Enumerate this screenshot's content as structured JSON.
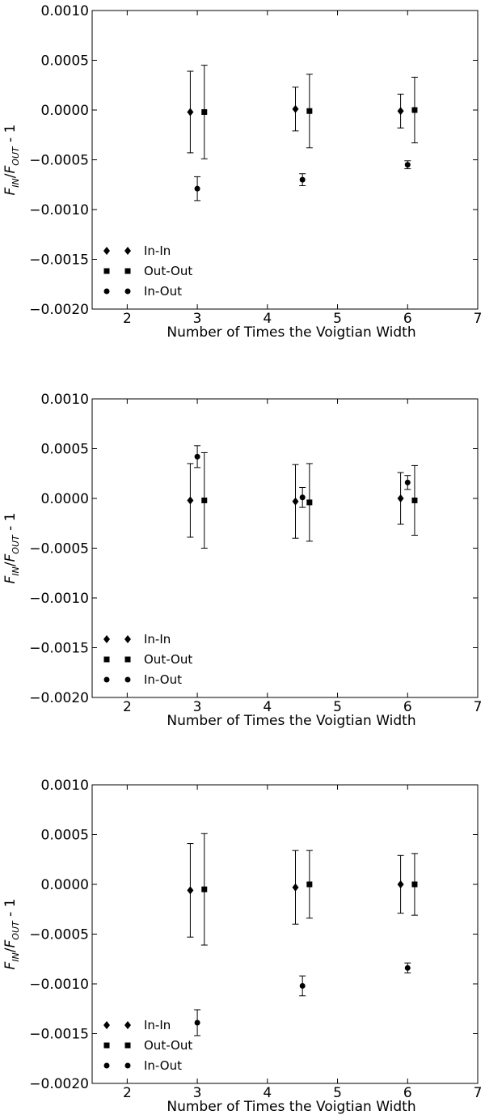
{
  "chart_data": [
    {
      "type": "scatter",
      "xlabel": "Number of Times the Voigtian Width",
      "ylabel": "F_IN/F_OUT - 1",
      "ylabel_parts": {
        "base1": "F",
        "sub1": "IN",
        "sep": "/",
        "base2": "F",
        "sub2": "OUT",
        "tail": " - 1"
      },
      "xlim": [
        1.5,
        7
      ],
      "ylim": [
        -0.002,
        0.001
      ],
      "xticks": [
        2,
        3,
        4,
        5,
        6,
        7
      ],
      "yticks": [
        -0.002,
        -0.0015,
        -0.001,
        -0.0005,
        0.0,
        0.0005,
        0.001
      ],
      "ytick_labels": [
        "−0.0020",
        "−0.0015",
        "−0.0010",
        "−0.0005",
        "0.0000",
        "0.0005",
        "0.0010"
      ],
      "legend_position": "lower-left",
      "series": [
        {
          "name": "In-In",
          "marker": "diamond",
          "points": [
            {
              "x": 2.9,
              "y": -2e-05,
              "err": 0.00041
            },
            {
              "x": 4.4,
              "y": 1e-05,
              "err": 0.00022
            },
            {
              "x": 5.9,
              "y": -1e-05,
              "err": 0.00017
            }
          ]
        },
        {
          "name": "Out-Out",
          "marker": "square",
          "points": [
            {
              "x": 3.1,
              "y": -2e-05,
              "err": 0.00047
            },
            {
              "x": 4.6,
              "y": -1e-05,
              "err": 0.00037
            },
            {
              "x": 6.1,
              "y": 0.0,
              "err": 0.00033
            }
          ]
        },
        {
          "name": "In-Out",
          "marker": "circle",
          "points": [
            {
              "x": 3.0,
              "y": -0.00079,
              "err": 0.00012
            },
            {
              "x": 4.5,
              "y": -0.0007,
              "err": 6e-05
            },
            {
              "x": 6.0,
              "y": -0.00055,
              "err": 4e-05
            }
          ]
        }
      ]
    },
    {
      "type": "scatter",
      "xlabel": "Number of Times the Voigtian Width",
      "ylabel": "F_IN/F_OUT - 1",
      "ylabel_parts": {
        "base1": "F",
        "sub1": "IN",
        "sep": "/",
        "base2": "F",
        "sub2": "OUT",
        "tail": " - 1"
      },
      "xlim": [
        1.5,
        7
      ],
      "ylim": [
        -0.002,
        0.001
      ],
      "xticks": [
        2,
        3,
        4,
        5,
        6,
        7
      ],
      "yticks": [
        -0.002,
        -0.0015,
        -0.001,
        -0.0005,
        0.0,
        0.0005,
        0.001
      ],
      "ytick_labels": [
        "−0.0020",
        "−0.0015",
        "−0.0010",
        "−0.0005",
        "0.0000",
        "0.0005",
        "0.0010"
      ],
      "legend_position": "lower-left",
      "series": [
        {
          "name": "In-In",
          "marker": "diamond",
          "points": [
            {
              "x": 2.9,
              "y": -2e-05,
              "err": 0.00037
            },
            {
              "x": 4.4,
              "y": -3e-05,
              "err": 0.00037
            },
            {
              "x": 5.9,
              "y": 0.0,
              "err": 0.00026
            }
          ]
        },
        {
          "name": "Out-Out",
          "marker": "square",
          "points": [
            {
              "x": 3.1,
              "y": -2e-05,
              "err": 0.00048
            },
            {
              "x": 4.6,
              "y": -4e-05,
              "err": 0.00039
            },
            {
              "x": 6.1,
              "y": -2e-05,
              "err": 0.00035
            }
          ]
        },
        {
          "name": "In-Out",
          "marker": "circle",
          "points": [
            {
              "x": 3.0,
              "y": 0.00042,
              "err": 0.00011
            },
            {
              "x": 4.5,
              "y": 1e-05,
              "err": 0.0001
            },
            {
              "x": 6.0,
              "y": 0.00016,
              "err": 7e-05
            }
          ]
        }
      ]
    },
    {
      "type": "scatter",
      "xlabel": "Number of Times the Voigtian Width",
      "ylabel": "F_IN/F_OUT - 1",
      "ylabel_parts": {
        "base1": "F",
        "sub1": "IN",
        "sep": "/",
        "base2": "F",
        "sub2": "OUT",
        "tail": " - 1"
      },
      "xlim": [
        1.5,
        7
      ],
      "ylim": [
        -0.002,
        0.001
      ],
      "xticks": [
        2,
        3,
        4,
        5,
        6,
        7
      ],
      "yticks": [
        -0.002,
        -0.0015,
        -0.001,
        -0.0005,
        0.0,
        0.0005,
        0.001
      ],
      "ytick_labels": [
        "−0.0020",
        "−0.0015",
        "−0.0010",
        "−0.0005",
        "0.0000",
        "0.0005",
        "0.0010"
      ],
      "legend_position": "lower-left",
      "series": [
        {
          "name": "In-In",
          "marker": "diamond",
          "points": [
            {
              "x": 2.9,
              "y": -6e-05,
              "err": 0.00047
            },
            {
              "x": 4.4,
              "y": -3e-05,
              "err": 0.00037
            },
            {
              "x": 5.9,
              "y": 0.0,
              "err": 0.00029
            }
          ]
        },
        {
          "name": "Out-Out",
          "marker": "square",
          "points": [
            {
              "x": 3.1,
              "y": -5e-05,
              "err": 0.00056
            },
            {
              "x": 4.6,
              "y": 0.0,
              "err": 0.00034
            },
            {
              "x": 6.1,
              "y": 0.0,
              "err": 0.00031
            }
          ]
        },
        {
          "name": "In-Out",
          "marker": "circle",
          "points": [
            {
              "x": 3.0,
              "y": -0.00139,
              "err": 0.00013
            },
            {
              "x": 4.5,
              "y": -0.00102,
              "err": 0.0001
            },
            {
              "x": 6.0,
              "y": -0.00084,
              "err": 5e-05
            }
          ]
        }
      ]
    }
  ]
}
